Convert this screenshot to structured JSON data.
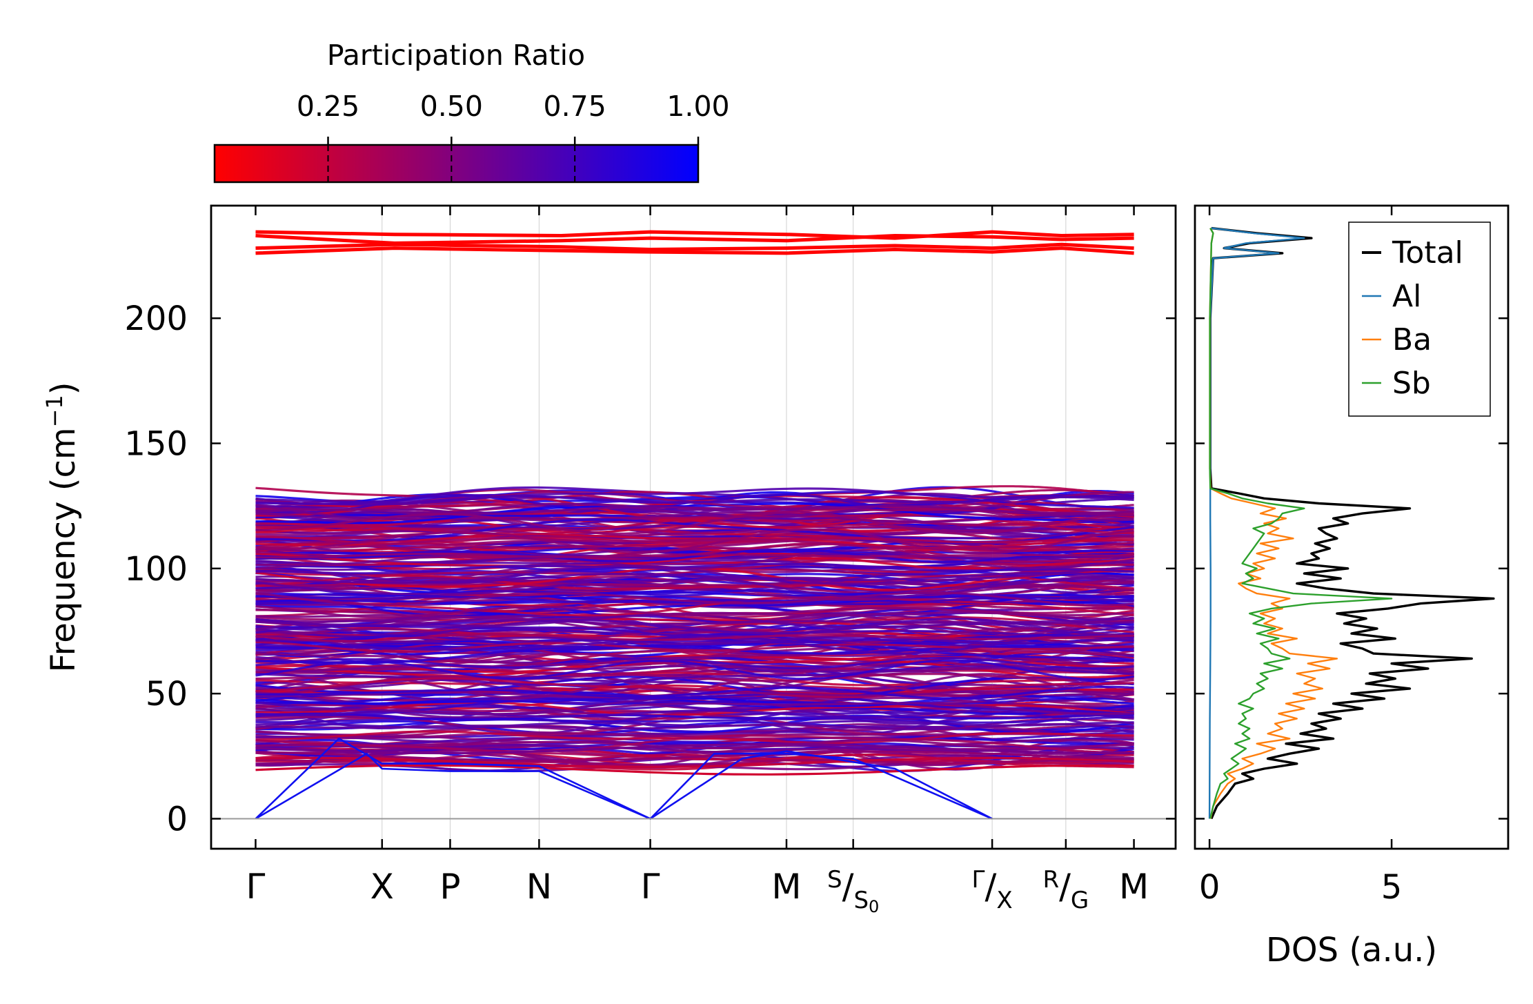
{
  "colorbar": {
    "label": "Participation Ratio",
    "tick_values": [
      0.25,
      0.5,
      0.75,
      1.0
    ],
    "tick_labels": [
      "0.25",
      "0.50",
      "0.75",
      "1.00"
    ],
    "range": [
      0.02,
      1.0
    ],
    "color_low": "#ff0000",
    "color_high": "#0000ff"
  },
  "chart_data": [
    {
      "type": "line",
      "title": "",
      "ylabel": "Frequency (cm",
      "ylabel_sup": "−1",
      "ylabel_close": ")",
      "ylim": [
        -12,
        245
      ],
      "yticks": [
        0,
        50,
        100,
        150,
        200
      ],
      "ytick_labels": [
        "0",
        "50",
        "100",
        "150",
        "200"
      ],
      "xlim": [
        -0.32,
        6.62
      ],
      "k_points": [
        {
          "x": 0.0,
          "label": "Γ"
        },
        {
          "x": 0.91,
          "label": "X"
        },
        {
          "x": 1.4,
          "label": "P"
        },
        {
          "x": 2.04,
          "label": "N"
        },
        {
          "x": 2.84,
          "label": "Γ"
        },
        {
          "x": 3.82,
          "label": "M"
        },
        {
          "x": 4.3,
          "label": "S",
          "sub": "S0"
        },
        {
          "x": 5.3,
          "label": "Γ",
          "sub": "X"
        },
        {
          "x": 5.83,
          "label": "R",
          "sub": "G"
        },
        {
          "x": 6.32,
          "label": "M"
        }
      ],
      "path_break_x": 5.3,
      "acoustic_branches": [
        {
          "name": "acoustic-1",
          "x": [
            0.0,
            0.6,
            0.91,
            1.4,
            2.04,
            2.84,
            3.3,
            3.82,
            4.3,
            5.3
          ],
          "y": [
            0,
            32,
            22,
            22,
            21,
            0,
            26,
            26,
            24,
            0
          ]
        },
        {
          "name": "acoustic-2",
          "x": [
            0.0,
            0.8,
            0.91,
            1.4,
            2.04,
            2.84,
            3.5,
            3.82,
            4.6,
            5.3
          ],
          "y": [
            0,
            26,
            20,
            19,
            19,
            0,
            24,
            27,
            20,
            0
          ]
        }
      ],
      "optical_band_region": {
        "y_min": 18,
        "y_max": 131,
        "participation_ratio_range": [
          0.2,
          0.95
        ]
      },
      "high_band_region": {
        "y_min": 225,
        "y_max": 235,
        "participation_ratio": 0.02
      },
      "high_bands": [
        {
          "name": "high-band-1",
          "x": [
            0,
            1.0,
            2.2,
            2.84,
            3.82,
            4.6,
            5.3,
            5.8,
            6.32
          ],
          "y": [
            234.5,
            233.5,
            233,
            234.5,
            233.5,
            232,
            234.5,
            233,
            233.5
          ]
        },
        {
          "name": "high-band-2",
          "x": [
            0,
            1.0,
            2.2,
            2.84,
            3.82,
            4.6,
            5.3,
            5.8,
            6.32
          ],
          "y": [
            233,
            230,
            231,
            232,
            231,
            233,
            232.5,
            231.5,
            232
          ]
        },
        {
          "name": "high-band-3",
          "x": [
            0,
            1.0,
            2.2,
            2.84,
            3.82,
            4.6,
            5.3,
            5.8,
            6.32
          ],
          "y": [
            228,
            229.5,
            228.5,
            227.5,
            228,
            229,
            228,
            229.5,
            228
          ]
        },
        {
          "name": "high-band-4",
          "x": [
            0,
            1.0,
            2.2,
            2.84,
            3.82,
            4.6,
            5.3,
            5.8,
            6.32
          ],
          "y": [
            226,
            228,
            227,
            226.5,
            226,
            227.5,
            226.5,
            228,
            226
          ]
        }
      ]
    },
    {
      "type": "line",
      "xlabel": "DOS (a.u.)",
      "xlim": [
        -0.4,
        8.2
      ],
      "xticks": [
        0,
        5
      ],
      "xtick_labels": [
        "0",
        "5"
      ],
      "ylim": [
        -12,
        245
      ],
      "legend": {
        "position": "top-right"
      },
      "series": [
        {
          "name": "Total",
          "color": "#000000",
          "y": [
            0,
            5,
            10,
            14,
            16,
            18,
            20,
            22,
            24,
            26,
            28,
            30,
            32,
            34,
            36,
            38,
            40,
            42,
            44,
            46,
            48,
            50,
            52,
            54,
            56,
            58,
            60,
            62,
            64,
            66,
            68,
            70,
            72,
            74,
            76,
            78,
            80,
            82,
            84,
            86,
            88,
            90,
            92,
            94,
            96,
            98,
            100,
            102,
            104,
            106,
            108,
            110,
            112,
            114,
            116,
            118,
            120,
            122,
            124,
            126,
            128,
            130,
            132,
            140,
            200,
            224,
            226,
            228,
            230,
            232,
            234,
            236
          ],
          "x": [
            0.05,
            0.2,
            0.5,
            0.7,
            1.2,
            0.9,
            1.5,
            2.4,
            1.6,
            2.2,
            3.0,
            2.1,
            3.4,
            2.5,
            3.2,
            2.8,
            3.6,
            3.0,
            4.2,
            3.4,
            4.8,
            3.9,
            5.5,
            4.3,
            5.1,
            4.4,
            6.0,
            5.0,
            7.2,
            4.5,
            4.2,
            3.6,
            5.1,
            3.9,
            4.6,
            3.7,
            4.3,
            3.5,
            4.9,
            5.8,
            7.8,
            4.5,
            3.2,
            2.4,
            3.6,
            2.6,
            3.8,
            2.4,
            3.0,
            2.8,
            3.3,
            2.9,
            3.5,
            3.2,
            3.0,
            3.8,
            3.4,
            4.2,
            5.5,
            3.0,
            1.5,
            0.8,
            0.05,
            0.02,
            0.02,
            0.1,
            2.0,
            0.4,
            1.1,
            2.8,
            1.3,
            0.05
          ]
        },
        {
          "name": "Al",
          "color": "#1f77b4",
          "y": [
            0,
            40,
            60,
            80,
            100,
            120,
            130,
            140,
            200,
            224,
            226,
            228,
            230,
            232,
            234,
            236
          ],
          "x": [
            0.0,
            0.01,
            0.02,
            0.03,
            0.03,
            0.02,
            0.02,
            0.02,
            0.02,
            0.1,
            1.9,
            0.4,
            1.0,
            2.6,
            1.2,
            0.05
          ]
        },
        {
          "name": "Ba",
          "color": "#ff7f0e",
          "y": [
            0,
            5,
            10,
            14,
            16,
            18,
            20,
            22,
            24,
            26,
            28,
            30,
            32,
            34,
            36,
            38,
            40,
            42,
            44,
            46,
            48,
            50,
            52,
            54,
            56,
            58,
            60,
            62,
            64,
            66,
            68,
            70,
            72,
            74,
            76,
            78,
            80,
            82,
            84,
            86,
            88,
            90,
            92,
            94,
            96,
            98,
            100,
            102,
            104,
            106,
            108,
            110,
            112,
            114,
            116,
            118,
            120,
            122,
            124,
            126,
            128,
            130,
            132,
            140,
            200,
            230,
            234,
            236
          ],
          "x": [
            0.03,
            0.1,
            0.3,
            0.5,
            0.7,
            0.5,
            0.9,
            1.2,
            0.9,
            1.4,
            1.8,
            1.3,
            2.2,
            1.6,
            2.0,
            1.8,
            2.4,
            1.9,
            2.6,
            2.1,
            2.9,
            2.3,
            3.1,
            2.6,
            2.9,
            2.4,
            3.3,
            2.7,
            3.5,
            2.2,
            2.0,
            1.7,
            2.4,
            1.6,
            2.0,
            1.5,
            1.8,
            1.4,
            2.0,
            1.7,
            2.2,
            1.3,
            1.0,
            0.8,
            1.4,
            1.0,
            1.5,
            1.2,
            1.8,
            1.3,
            1.9,
            1.4,
            2.3,
            1.6,
            1.9,
            1.5,
            2.1,
            1.4,
            1.8,
            1.2,
            0.6,
            0.3,
            0.03,
            0.01,
            0.01,
            0.05,
            0.1,
            0.02
          ]
        },
        {
          "name": "Sb",
          "color": "#2ca02c",
          "y": [
            0,
            5,
            10,
            14,
            16,
            18,
            20,
            22,
            24,
            26,
            28,
            30,
            32,
            34,
            36,
            38,
            40,
            42,
            44,
            46,
            48,
            50,
            52,
            54,
            56,
            58,
            60,
            62,
            64,
            66,
            68,
            70,
            72,
            74,
            76,
            78,
            80,
            82,
            84,
            86,
            88,
            90,
            92,
            94,
            96,
            98,
            100,
            102,
            104,
            106,
            108,
            110,
            112,
            114,
            116,
            118,
            120,
            122,
            124,
            126,
            128,
            130,
            132,
            140,
            200,
            230,
            234,
            236
          ],
          "x": [
            0.02,
            0.1,
            0.2,
            0.3,
            0.5,
            0.4,
            0.6,
            0.8,
            0.6,
            0.8,
            1.0,
            0.7,
            1.1,
            0.9,
            1.1,
            0.8,
            1.0,
            0.9,
            1.2,
            0.8,
            1.1,
            1.2,
            1.5,
            1.3,
            1.6,
            1.4,
            2.0,
            1.5,
            2.2,
            1.7,
            1.6,
            1.4,
            1.9,
            1.3,
            1.8,
            1.2,
            1.5,
            1.1,
            1.7,
            2.8,
            5.0,
            2.3,
            1.6,
            0.9,
            1.2,
            1.0,
            1.3,
            0.9,
            1.0,
            1.1,
            1.2,
            1.3,
            1.4,
            1.5,
            1.2,
            1.7,
            1.9,
            2.0,
            2.6,
            1.6,
            0.9,
            0.5,
            0.02,
            0.01,
            0.01,
            0.05,
            0.1,
            0.02
          ]
        }
      ]
    }
  ]
}
